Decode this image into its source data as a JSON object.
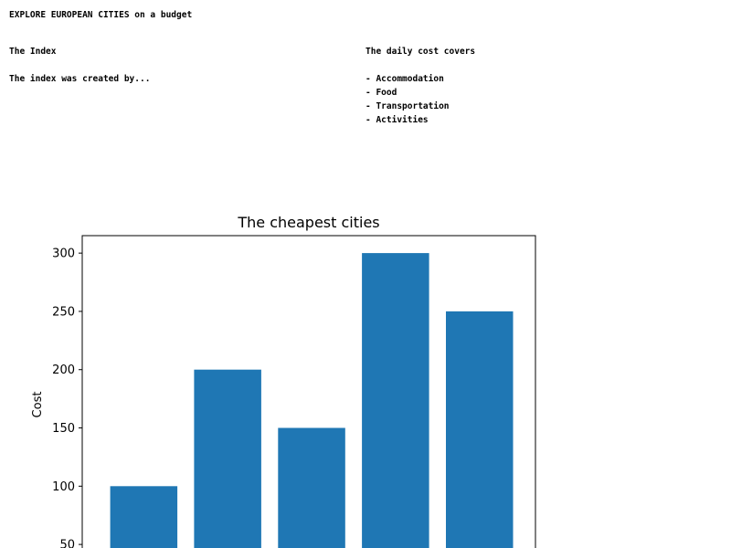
{
  "header": {
    "headline": "EXPLORE EUROPEAN CITIES on a budget"
  },
  "index_section": {
    "heading": "The Index",
    "description": "The index was created by..."
  },
  "cost_section": {
    "heading": "The daily cost covers",
    "items": [
      "- Accommodation",
      "- Food",
      "- Transportation",
      "- Activities"
    ]
  },
  "chart_data": {
    "type": "bar",
    "title": "The cheapest cities",
    "xlabel": "",
    "ylabel": "Cost",
    "categories": [
      "",
      "",
      "",
      "",
      ""
    ],
    "values": [
      100,
      200,
      150,
      300,
      250
    ],
    "ylim": [
      25,
      315
    ],
    "yticks": [
      50,
      100,
      150,
      200,
      250,
      300
    ],
    "bar_color": "#1f77b4",
    "grid": false
  }
}
